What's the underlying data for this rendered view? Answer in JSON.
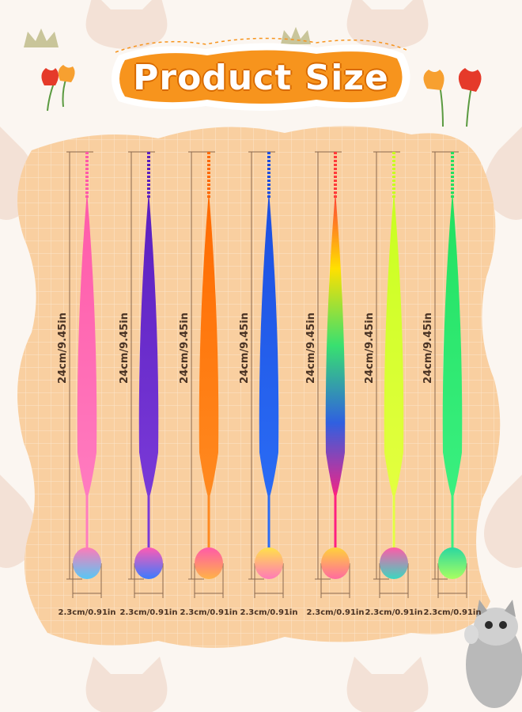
{
  "title": "Product Size",
  "length_label": "24cm/9.45in",
  "diameter_label": "2.3cm/0.91in",
  "colors": {
    "background": "#fbf6f1",
    "blob": "#f9cfa0",
    "title_fill": "#f7941d",
    "title_border": "#ffffff"
  },
  "toys": [
    {
      "name": "pink",
      "fur": [
        "#ff5aa8",
        "#ff7cc0"
      ],
      "ball": [
        "#ff7ab8",
        "#56c8f5"
      ]
    },
    {
      "name": "purple",
      "fur": [
        "#5a1fbf",
        "#7a3ad8"
      ],
      "ball": [
        "#ff5ab4",
        "#3a7bff"
      ]
    },
    {
      "name": "orange",
      "fur": [
        "#ff6a00",
        "#ff8a20"
      ],
      "ball": [
        "#ff5aa8",
        "#ffb347"
      ]
    },
    {
      "name": "blue",
      "fur": [
        "#1d4fe0",
        "#2a6cf5"
      ],
      "ball": [
        "#ffe14a",
        "#ff7ab8"
      ]
    },
    {
      "name": "rainbow",
      "fur": [
        "#ff3a3a",
        "#ffe000",
        "#38e070",
        "#3060e0",
        "#ff2080"
      ],
      "ball": [
        "#ffd23a",
        "#ff6aa0"
      ]
    },
    {
      "name": "lime",
      "fur": [
        "#c8ff20",
        "#e4ff40"
      ],
      "ball": [
        "#ff5aa8",
        "#3ad8c0"
      ]
    },
    {
      "name": "green",
      "fur": [
        "#22e060",
        "#3af080"
      ],
      "ball": [
        "#2ad8a0",
        "#a8ff60"
      ]
    }
  ],
  "icons": [
    "cat-face-icon",
    "crown-icon",
    "tulip-icon",
    "kitten-photo"
  ]
}
